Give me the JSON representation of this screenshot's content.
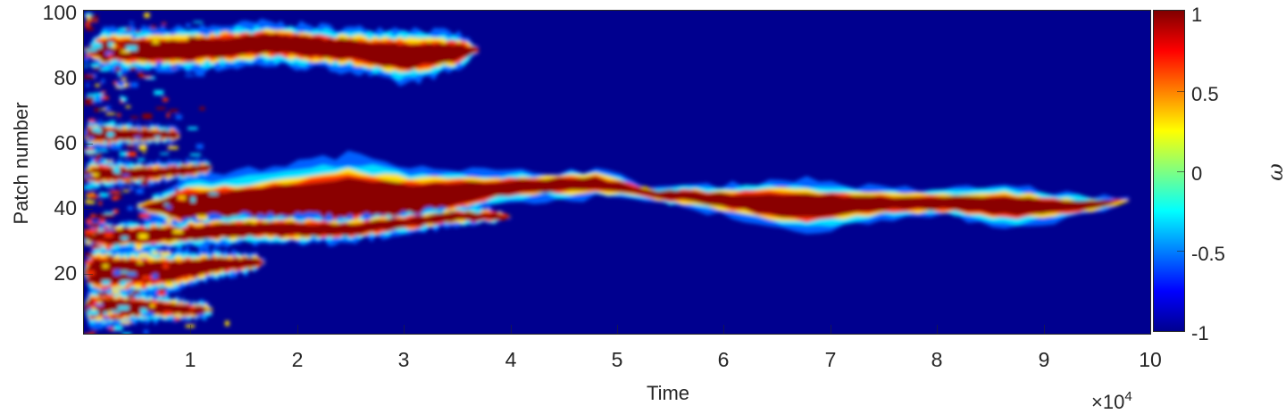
{
  "chart_data": {
    "type": "heatmap",
    "title": "",
    "xlabel": "Time",
    "ylabel": "Patch number",
    "x_exponent_label": "×10",
    "x_exponent_power": "4",
    "xlim": [
      0,
      100000
    ],
    "ylim": [
      1,
      100
    ],
    "x_ticks": [
      "1",
      "2",
      "3",
      "4",
      "5",
      "6",
      "7",
      "8",
      "9",
      "10"
    ],
    "x_tick_values": [
      10000,
      20000,
      30000,
      40000,
      50000,
      60000,
      70000,
      80000,
      90000,
      100000
    ],
    "y_ticks": [
      "20",
      "40",
      "60",
      "80",
      "100"
    ],
    "y_tick_values": [
      20,
      40,
      60,
      80,
      100
    ],
    "colormap": "jet",
    "colorbar": {
      "label": "ω",
      "range": [
        -1,
        1
      ],
      "ticks": [
        "1",
        "0.5",
        "0",
        "-0.5",
        "-1"
      ],
      "tick_values": [
        1,
        0.5,
        0,
        -0.5,
        -1
      ]
    },
    "background_value": -1,
    "grid": false,
    "legend": "none",
    "description": "Space-time map of patch state ω over 100 patches; initial noisy mixture coarsens into a few active (ω≈1) clusters that drift and vanish, with one central cluster persisting to ~9.8e4.",
    "clusters": [
      {
        "name": "upper-band",
        "t_start": 0,
        "t_end": 37000,
        "patch_center": [
          [
            0,
            88
          ],
          [
            10000,
            88
          ],
          [
            17000,
            90
          ],
          [
            25000,
            88
          ],
          [
            30000,
            86
          ],
          [
            37000,
            88
          ]
        ],
        "half_width": [
          [
            0,
            3
          ],
          [
            10000,
            3
          ],
          [
            25000,
            3
          ],
          [
            30000,
            4
          ],
          [
            37000,
            2
          ]
        ]
      },
      {
        "name": "central-band",
        "t_start": 5000,
        "t_end": 98000,
        "patch_center": [
          [
            5000,
            40
          ],
          [
            15000,
            40
          ],
          [
            25000,
            43
          ],
          [
            30000,
            42
          ],
          [
            40000,
            46
          ],
          [
            48000,
            47
          ],
          [
            53000,
            44
          ],
          [
            60000,
            42
          ],
          [
            67000,
            40
          ],
          [
            75000,
            41
          ],
          [
            82000,
            41
          ],
          [
            87000,
            40
          ],
          [
            93000,
            40
          ],
          [
            98000,
            42
          ]
        ],
        "half_width": [
          [
            5000,
            4
          ],
          [
            15000,
            5
          ],
          [
            25000,
            6
          ],
          [
            30000,
            5
          ],
          [
            40000,
            2
          ],
          [
            48000,
            2
          ],
          [
            53000,
            1
          ],
          [
            60000,
            2
          ],
          [
            67000,
            4
          ],
          [
            75000,
            2
          ],
          [
            82000,
            2
          ],
          [
            87000,
            3
          ],
          [
            93000,
            1.5
          ],
          [
            98000,
            1
          ]
        ]
      },
      {
        "name": "lower-band",
        "t_start": 0,
        "t_end": 17000,
        "patch_center": [
          [
            0,
            20
          ],
          [
            8000,
            20
          ],
          [
            12000,
            22
          ],
          [
            17000,
            23
          ]
        ],
        "half_width": [
          [
            0,
            4
          ],
          [
            8000,
            3
          ],
          [
            17000,
            1
          ]
        ]
      },
      {
        "name": "bottom-band",
        "t_start": 0,
        "t_end": 12000,
        "patch_center": [
          [
            0,
            9
          ],
          [
            6000,
            9
          ],
          [
            12000,
            8
          ]
        ],
        "half_width": [
          [
            0,
            3
          ],
          [
            12000,
            1
          ]
        ]
      },
      {
        "name": "early-band-50",
        "t_start": 0,
        "t_end": 12000,
        "patch_center": [
          [
            0,
            50
          ],
          [
            6000,
            50
          ],
          [
            12000,
            52
          ]
        ],
        "half_width": [
          [
            0,
            2
          ],
          [
            12000,
            1
          ]
        ]
      },
      {
        "name": "early-band-62",
        "t_start": 0,
        "t_end": 9000,
        "patch_center": [
          [
            0,
            62
          ],
          [
            9000,
            62
          ]
        ],
        "half_width": [
          [
            0,
            2
          ],
          [
            9000,
            1
          ]
        ]
      },
      {
        "name": "early-band-30",
        "t_start": 0,
        "t_end": 40000,
        "patch_center": [
          [
            0,
            30
          ],
          [
            15000,
            33
          ],
          [
            25000,
            33
          ],
          [
            35000,
            37
          ],
          [
            40000,
            37
          ]
        ],
        "half_width": [
          [
            0,
            2
          ],
          [
            20000,
            2
          ],
          [
            40000,
            1
          ]
        ]
      }
    ]
  }
}
